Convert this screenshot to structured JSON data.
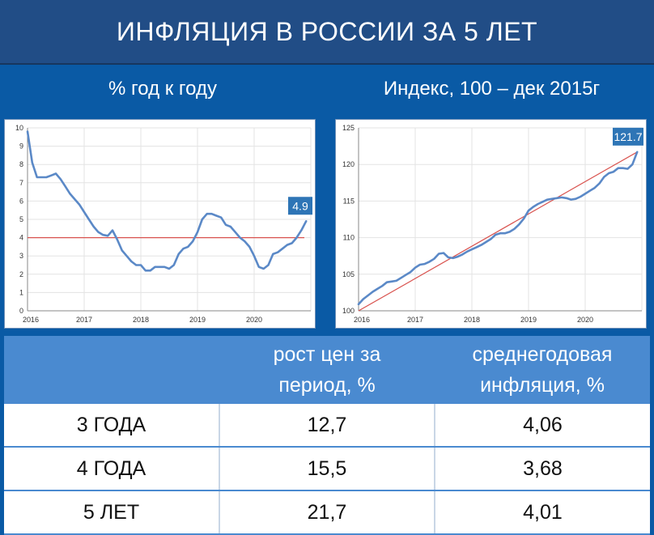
{
  "header": {
    "title": "ИНФЛЯЦИЯ В РОССИИ ЗА 5 ЛЕТ"
  },
  "left_chart_title": "% год к году",
  "right_chart_title": "Индекс, 100 – дек 2015г",
  "colors": {
    "header_bg": "#214d86",
    "page_bg": "#0a5aa5",
    "series": "#5b89c7",
    "trend": "#d9534f",
    "badge": "#2e75b6",
    "table_header": "#4a8ad0"
  },
  "chart_data": [
    {
      "type": "line",
      "title": "% год к году",
      "x_tick_labels": [
        "2016",
        "2017",
        "2018",
        "2019",
        "2020"
      ],
      "xlim": [
        2016.0,
        2021.0
      ],
      "ylim": [
        0,
        10
      ],
      "y_ticks": [
        0,
        1,
        2,
        3,
        4,
        5,
        6,
        7,
        8,
        9,
        10
      ],
      "grid": true,
      "reference_line": {
        "y": 4
      },
      "end_label": "4.9",
      "series": [
        {
          "x": [
            2016.0,
            2016.083,
            2016.167,
            2016.25,
            2016.333,
            2016.417,
            2016.5,
            2016.583,
            2016.667,
            2016.75,
            2016.833,
            2016.917,
            2017.0,
            2017.083,
            2017.167,
            2017.25,
            2017.333,
            2017.417,
            2017.5,
            2017.583,
            2017.667,
            2017.75,
            2017.833,
            2017.917,
            2018.0,
            2018.083,
            2018.167,
            2018.25,
            2018.333,
            2018.417,
            2018.5,
            2018.583,
            2018.667,
            2018.75,
            2018.833,
            2018.917,
            2019.0,
            2019.083,
            2019.167,
            2019.25,
            2019.333,
            2019.417,
            2019.5,
            2019.583,
            2019.667,
            2019.75,
            2019.833,
            2019.917,
            2020.0,
            2020.083,
            2020.167,
            2020.25,
            2020.333,
            2020.417,
            2020.5,
            2020.583,
            2020.667,
            2020.75,
            2020.833,
            2020.917
          ],
          "values": [
            9.8,
            8.1,
            7.3,
            7.3,
            7.3,
            7.4,
            7.5,
            7.2,
            6.8,
            6.4,
            6.1,
            5.8,
            5.4,
            5.0,
            4.6,
            4.3,
            4.15,
            4.1,
            4.4,
            3.9,
            3.3,
            3.0,
            2.7,
            2.5,
            2.5,
            2.2,
            2.2,
            2.4,
            2.4,
            2.4,
            2.3,
            2.5,
            3.1,
            3.4,
            3.5,
            3.8,
            4.3,
            5.0,
            5.3,
            5.3,
            5.2,
            5.1,
            4.7,
            4.6,
            4.3,
            4.0,
            3.8,
            3.5,
            3.0,
            2.4,
            2.3,
            2.5,
            3.1,
            3.2,
            3.4,
            3.6,
            3.7,
            4.0,
            4.4,
            4.9
          ]
        }
      ]
    },
    {
      "type": "line",
      "title": "Индекс, 100 – дек 2015г",
      "x_tick_labels": [
        "2016",
        "2017",
        "2018",
        "2019",
        "2020"
      ],
      "xlim": [
        2016.0,
        2021.0
      ],
      "ylim": [
        100,
        125
      ],
      "y_ticks": [
        100,
        105,
        110,
        115,
        120,
        125
      ],
      "grid": true,
      "trend_line": {
        "from": [
          2016.0,
          100
        ],
        "to": [
          2020.917,
          121.7
        ]
      },
      "end_label": "121.7",
      "series": [
        {
          "x": [
            2016.0,
            2016.083,
            2016.167,
            2016.25,
            2016.333,
            2016.417,
            2016.5,
            2016.583,
            2016.667,
            2016.75,
            2016.833,
            2016.917,
            2017.0,
            2017.083,
            2017.167,
            2017.25,
            2017.333,
            2017.417,
            2017.5,
            2017.583,
            2017.667,
            2017.75,
            2017.833,
            2017.917,
            2018.0,
            2018.083,
            2018.167,
            2018.25,
            2018.333,
            2018.417,
            2018.5,
            2018.583,
            2018.667,
            2018.75,
            2018.833,
            2018.917,
            2019.0,
            2019.083,
            2019.167,
            2019.25,
            2019.333,
            2019.417,
            2019.5,
            2019.583,
            2019.667,
            2019.75,
            2019.833,
            2019.917,
            2020.0,
            2020.083,
            2020.167,
            2020.25,
            2020.333,
            2020.417,
            2020.5,
            2020.583,
            2020.667,
            2020.75,
            2020.833,
            2020.917
          ],
          "values": [
            100.9,
            101.6,
            102.1,
            102.6,
            103.0,
            103.4,
            103.9,
            104.0,
            104.1,
            104.5,
            104.9,
            105.3,
            105.9,
            106.3,
            106.4,
            106.7,
            107.1,
            107.8,
            107.9,
            107.3,
            107.2,
            107.4,
            107.7,
            108.1,
            108.4,
            108.7,
            109.0,
            109.4,
            109.8,
            110.4,
            110.6,
            110.6,
            110.8,
            111.2,
            111.8,
            112.6,
            113.7,
            114.2,
            114.6,
            114.9,
            115.2,
            115.3,
            115.4,
            115.5,
            115.4,
            115.2,
            115.3,
            115.6,
            116.0,
            116.4,
            116.8,
            117.4,
            118.3,
            118.8,
            119.0,
            119.5,
            119.5,
            119.4,
            120.0,
            121.7
          ]
        }
      ]
    }
  ],
  "table": {
    "headers": [
      "",
      "рост цен за период, %",
      "среднегодовая инфляция, %"
    ],
    "headers_lines": [
      [
        "",
        ""
      ],
      [
        "рост цен за",
        "период, %"
      ],
      [
        "среднегодовая",
        "инфляция, %"
      ]
    ],
    "rows": [
      [
        "3 ГОДА",
        "12,7",
        "4,06"
      ],
      [
        "4 ГОДА",
        "15,5",
        "3,68"
      ],
      [
        "5 ЛЕТ",
        "21,7",
        "4,01"
      ]
    ]
  }
}
